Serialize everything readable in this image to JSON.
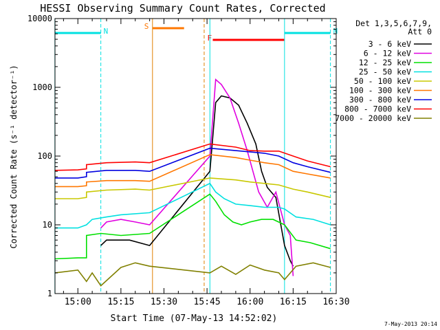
{
  "chart_data": {
    "type": "line",
    "title": "HESSI Observing Summary Count Rates, Corrected",
    "xlabel": "Start Time (07-May-13 14:52:02)",
    "ylabel": "Corrected Count Rate (s⁻¹ detector⁻¹)",
    "y_scale": "log",
    "ylim": [
      1,
      10000
    ],
    "xlim": [
      "14:52:02",
      "16:30:00"
    ],
    "x_ticks": [
      "15:00",
      "15:15",
      "15:30",
      "15:45",
      "16:00",
      "16:15",
      "16:30"
    ],
    "y_ticks": [
      "1",
      "10",
      "100",
      "1000",
      "10000"
    ],
    "legend_title": [
      "Det 1,3,5,6,7,9,",
      "Att 0"
    ],
    "legend_position": "top-right",
    "timestamp": "7-May-2013 20:14",
    "intervals": [
      {
        "label": "N",
        "name": "night",
        "color": "#00e0e0",
        "start": "14:52",
        "end": "15:08"
      },
      {
        "label": "N",
        "name": "night",
        "color": "#00e0e0",
        "start": "16:12",
        "end": "16:28"
      },
      {
        "label": "S",
        "name": "saa",
        "color": "#ff7700",
        "start": "15:26",
        "end": "15:37"
      },
      {
        "label": "F",
        "name": "flare",
        "color": "#ff0000",
        "start": "15:47",
        "end": "16:12"
      }
    ],
    "vlines": [
      {
        "t": "14:52",
        "color": "#00e0e0",
        "dashed": false
      },
      {
        "t": "15:08",
        "color": "#00e0e0",
        "dashed": true
      },
      {
        "t": "15:26",
        "color": "#e08000",
        "dashed": false
      },
      {
        "t": "15:44",
        "color": "#e08000",
        "dashed": true
      },
      {
        "t": "15:46",
        "color": "#00e0e0",
        "dashed": false
      },
      {
        "t": "16:12",
        "color": "#00e0e0",
        "dashed": false
      },
      {
        "t": "16:28",
        "color": "#00e0e0",
        "dashed": true
      }
    ],
    "series": [
      {
        "name": "3 - 6 keV",
        "color": "#000000",
        "points": [
          [
            "15:08",
            5
          ],
          [
            "15:10",
            6
          ],
          [
            "15:18",
            6
          ],
          [
            "15:25",
            5
          ],
          [
            "15:46",
            60
          ],
          [
            "15:48",
            600
          ],
          [
            "15:50",
            750
          ],
          [
            "15:53",
            700
          ],
          [
            "15:56",
            550
          ],
          [
            "15:59",
            300
          ],
          [
            "16:02",
            150
          ],
          [
            "16:04",
            60
          ],
          [
            "16:06",
            35
          ],
          [
            "16:09",
            25
          ],
          [
            "16:12",
            5
          ],
          [
            "16:14",
            3
          ],
          [
            "16:15",
            2.5
          ]
        ]
      },
      {
        "name": "6 - 12 keV",
        "color": "#e000e0",
        "points": [
          [
            "15:08",
            9
          ],
          [
            "15:10",
            11
          ],
          [
            "15:15",
            12
          ],
          [
            "15:20",
            11
          ],
          [
            "15:25",
            10
          ],
          [
            "15:46",
            100
          ],
          [
            "15:48",
            1300
          ],
          [
            "15:50",
            1100
          ],
          [
            "15:53",
            700
          ],
          [
            "15:56",
            300
          ],
          [
            "15:59",
            120
          ],
          [
            "16:01",
            60
          ],
          [
            "16:03",
            30
          ],
          [
            "16:06",
            18
          ],
          [
            "16:09",
            30
          ],
          [
            "16:12",
            10
          ],
          [
            "16:14",
            7
          ],
          [
            "16:15",
            1.8
          ]
        ]
      },
      {
        "name": "12 - 25 keV",
        "color": "#00e000",
        "points": [
          [
            "14:52",
            3.2
          ],
          [
            "15:00",
            3.3
          ],
          [
            "15:03",
            3.3
          ],
          [
            "15:03",
            7
          ],
          [
            "15:08",
            7.5
          ],
          [
            "15:15",
            7
          ],
          [
            "15:25",
            7.5
          ],
          [
            "15:46",
            28
          ],
          [
            "15:48",
            22
          ],
          [
            "15:51",
            14
          ],
          [
            "15:54",
            11
          ],
          [
            "15:57",
            10
          ],
          [
            "16:00",
            11
          ],
          [
            "16:04",
            12
          ],
          [
            "16:08",
            12
          ],
          [
            "16:12",
            10
          ],
          [
            "16:16",
            6
          ],
          [
            "16:21",
            5.5
          ],
          [
            "16:28",
            4.5
          ]
        ]
      },
      {
        "name": "25 - 50 keV",
        "color": "#00e0e0",
        "points": [
          [
            "14:52",
            9
          ],
          [
            "15:00",
            9
          ],
          [
            "15:03",
            10
          ],
          [
            "15:05",
            12
          ],
          [
            "15:10",
            13
          ],
          [
            "15:15",
            14
          ],
          [
            "15:25",
            15
          ],
          [
            "15:46",
            40
          ],
          [
            "15:48",
            30
          ],
          [
            "15:51",
            24
          ],
          [
            "15:55",
            20
          ],
          [
            "16:00",
            19
          ],
          [
            "16:05",
            18
          ],
          [
            "16:10",
            18
          ],
          [
            "16:12",
            17
          ],
          [
            "16:16",
            13
          ],
          [
            "16:22",
            12
          ],
          [
            "16:28",
            10
          ]
        ]
      },
      {
        "name": "50 - 100 keV",
        "color": "#c8c800",
        "points": [
          [
            "14:52",
            24
          ],
          [
            "15:00",
            24
          ],
          [
            "15:03",
            25
          ],
          [
            "15:03",
            30
          ],
          [
            "15:10",
            32
          ],
          [
            "15:20",
            33
          ],
          [
            "15:25",
            32
          ],
          [
            "15:46",
            48
          ],
          [
            "15:55",
            45
          ],
          [
            "16:00",
            42
          ],
          [
            "16:05",
            40
          ],
          [
            "16:10",
            38
          ],
          [
            "16:15",
            33
          ],
          [
            "16:20",
            30
          ],
          [
            "16:28",
            25
          ]
        ]
      },
      {
        "name": "100 - 300 keV",
        "color": "#ff7700",
        "points": [
          [
            "14:52",
            36
          ],
          [
            "15:00",
            36
          ],
          [
            "15:03",
            37
          ],
          [
            "15:03",
            42
          ],
          [
            "15:10",
            44
          ],
          [
            "15:20",
            44
          ],
          [
            "15:25",
            43
          ],
          [
            "15:46",
            105
          ],
          [
            "15:55",
            95
          ],
          [
            "16:00",
            87
          ],
          [
            "16:05",
            80
          ],
          [
            "16:10",
            75
          ],
          [
            "16:15",
            60
          ],
          [
            "16:20",
            55
          ],
          [
            "16:28",
            48
          ]
        ]
      },
      {
        "name": "300 - 800 keV",
        "color": "#0000e0",
        "points": [
          [
            "14:52",
            48
          ],
          [
            "15:00",
            48
          ],
          [
            "15:03",
            50
          ],
          [
            "15:03",
            58
          ],
          [
            "15:10",
            62
          ],
          [
            "15:20",
            62
          ],
          [
            "15:25",
            60
          ],
          [
            "15:46",
            130
          ],
          [
            "15:55",
            120
          ],
          [
            "16:00",
            115
          ],
          [
            "16:05",
            110
          ],
          [
            "16:10",
            100
          ],
          [
            "16:15",
            80
          ],
          [
            "16:20",
            70
          ],
          [
            "16:28",
            58
          ]
        ]
      },
      {
        "name": "800 - 7000 keV",
        "color": "#ff0000",
        "points": [
          [
            "14:52",
            62
          ],
          [
            "15:00",
            63
          ],
          [
            "15:03",
            65
          ],
          [
            "15:03",
            75
          ],
          [
            "15:10",
            80
          ],
          [
            "15:20",
            82
          ],
          [
            "15:25",
            80
          ],
          [
            "15:46",
            150
          ],
          [
            "15:55",
            135
          ],
          [
            "16:00",
            120
          ],
          [
            "16:05",
            118
          ],
          [
            "16:10",
            118
          ],
          [
            "16:15",
            100
          ],
          [
            "16:20",
            85
          ],
          [
            "16:28",
            70
          ]
        ]
      },
      {
        "name": "7000 - 20000 keV",
        "color": "#808000",
        "points": [
          [
            "14:52",
            2
          ],
          [
            "15:00",
            2.2
          ],
          [
            "15:03",
            1.5
          ],
          [
            "15:05",
            2
          ],
          [
            "15:08",
            1.3
          ],
          [
            "15:15",
            2.4
          ],
          [
            "15:20",
            2.8
          ],
          [
            "15:25",
            2.5
          ],
          [
            "15:46",
            2
          ],
          [
            "15:50",
            2.5
          ],
          [
            "15:55",
            1.9
          ],
          [
            "16:00",
            2.6
          ],
          [
            "16:05",
            2.2
          ],
          [
            "16:10",
            2
          ],
          [
            "16:12",
            1.6
          ],
          [
            "16:16",
            2.5
          ],
          [
            "16:22",
            2.8
          ],
          [
            "16:28",
            2.4
          ]
        ]
      }
    ]
  }
}
